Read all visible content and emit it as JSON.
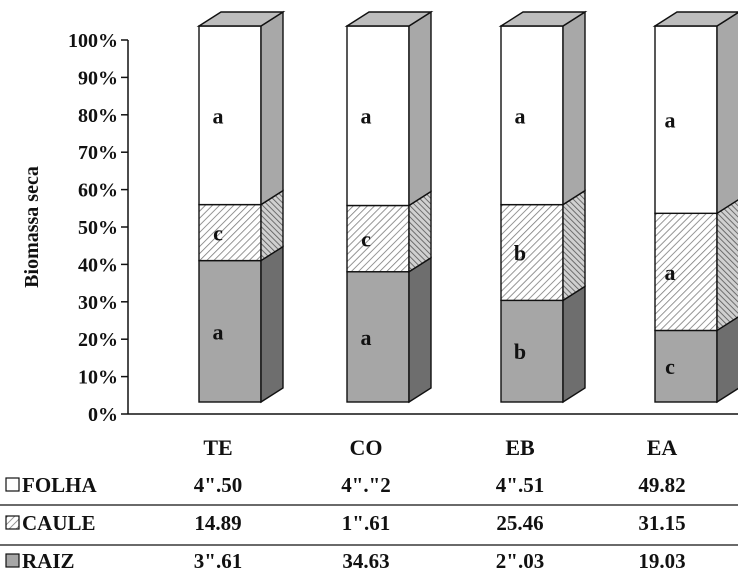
{
  "chart_data": {
    "type": "bar",
    "stacked": true,
    "percent_axis": true,
    "ylabel": "Biomassa seca",
    "ylim": [
      0,
      100
    ],
    "y_tick_labels": [
      "0%",
      "10%",
      "20%",
      "30%",
      "40%",
      "50%",
      "60%",
      "70%",
      "80%",
      "90%",
      "100%"
    ],
    "categories": [
      "TE",
      "CO",
      "EB",
      "EA"
    ],
    "series": [
      {
        "name": "RAIZ",
        "values": [
          37.61,
          34.63,
          27.03,
          19.03
        ],
        "value_labels": [
          "3\".61",
          "34.63",
          "2\".03",
          "19.03"
        ],
        "letters": [
          "a",
          "a",
          "b",
          "c"
        ],
        "color": "#a6a6a6",
        "side_color": "#6e6e6e",
        "pattern": "solid"
      },
      {
        "name": "CAULE",
        "values": [
          14.89,
          17.61,
          25.46,
          31.15
        ],
        "value_labels": [
          "14.89",
          "1\".61",
          "25.46",
          "31.15"
        ],
        "letters": [
          "c",
          "c",
          "b",
          "a"
        ],
        "color": "#ffffff",
        "side_color": "#8a8a8a",
        "pattern": "hatch"
      },
      {
        "name": "FOLHA",
        "values": [
          47.5,
          47.72,
          47.51,
          49.82
        ],
        "value_labels": [
          "4\".50",
          "4\".\"2",
          "4\".51",
          "49.82"
        ],
        "letters": [
          "a",
          "a",
          "a",
          "a"
        ],
        "color": "#ffffff",
        "side_color": "#a8a8a8",
        "pattern": "solid"
      }
    ],
    "grid": false,
    "legend": "data-table"
  }
}
